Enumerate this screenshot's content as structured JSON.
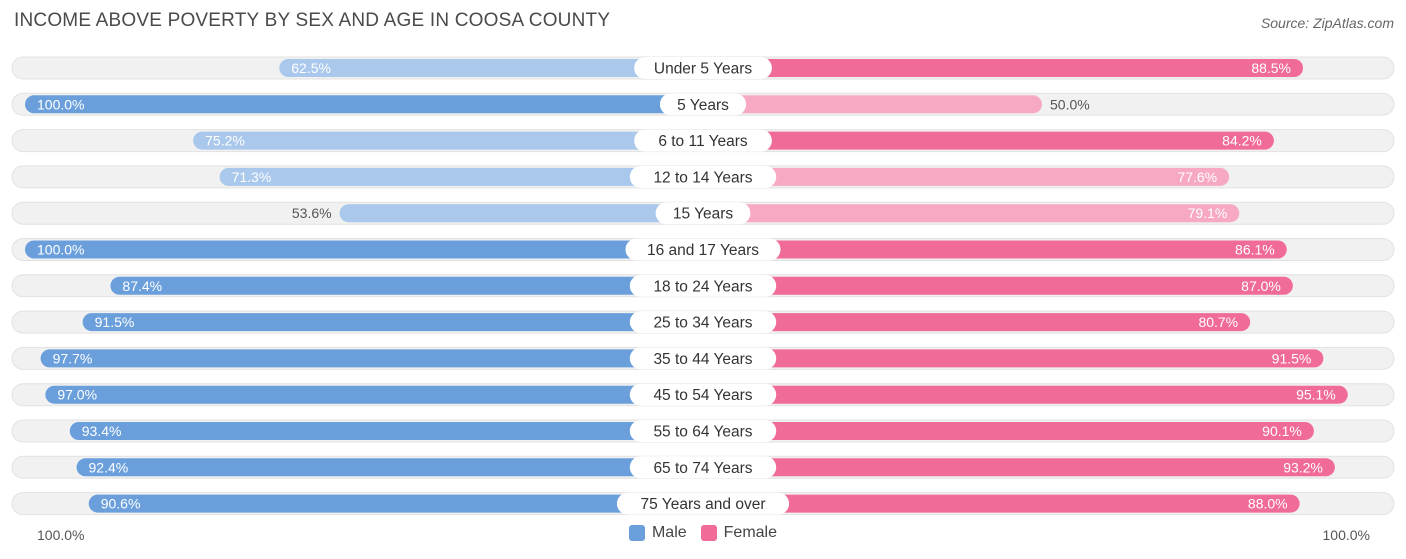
{
  "chart_data": {
    "type": "bar",
    "orientation": "horizontal-diverging",
    "title": "INCOME ABOVE POVERTY BY SEX AND AGE IN COOSA COUNTY",
    "source": "Source: ZipAtlas.com",
    "categories": [
      "Under 5 Years",
      "5 Years",
      "6 to 11 Years",
      "12 to 14 Years",
      "15 Years",
      "16 and 17 Years",
      "18 to 24 Years",
      "25 to 34 Years",
      "35 to 44 Years",
      "45 to 54 Years",
      "55 to 64 Years",
      "65 to 74 Years",
      "75 Years and over"
    ],
    "series": [
      {
        "name": "Male",
        "color": "#6a9fdc",
        "values": [
          62.5,
          100.0,
          75.2,
          71.3,
          53.6,
          100.0,
          87.4,
          91.5,
          97.7,
          97.0,
          93.4,
          92.4,
          90.6
        ],
        "labels": [
          "62.5%",
          "100.0%",
          "75.2%",
          "71.3%",
          "53.6%",
          "100.0%",
          "87.4%",
          "91.5%",
          "97.7%",
          "97.0%",
          "93.4%",
          "92.4%",
          "90.6%"
        ]
      },
      {
        "name": "Female",
        "color": "#f06b97",
        "values": [
          88.5,
          50.0,
          84.2,
          77.6,
          79.1,
          86.1,
          87.0,
          80.7,
          91.5,
          95.1,
          90.1,
          93.2,
          88.0
        ],
        "labels": [
          "88.5%",
          "50.0%",
          "84.2%",
          "77.6%",
          "79.1%",
          "86.1%",
          "87.0%",
          "80.7%",
          "91.5%",
          "95.1%",
          "90.1%",
          "93.2%",
          "88.0%"
        ]
      }
    ],
    "axis_min_label": "100.0%",
    "axis_max_label": "100.0%",
    "xlim": [
      0,
      100
    ],
    "legend_position": "bottom-center"
  }
}
